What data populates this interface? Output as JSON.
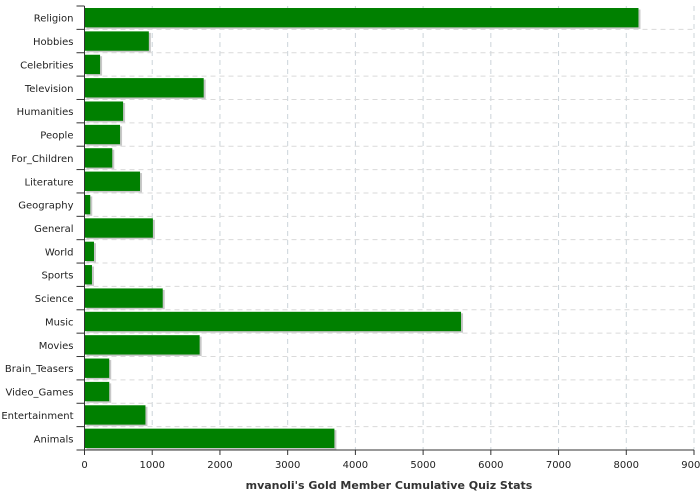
{
  "chart_data": {
    "type": "bar",
    "orientation": "horizontal",
    "title": "",
    "xlabel": "mvanoli's Gold Member Cumulative Quiz Stats",
    "ylabel": "",
    "categories": [
      "Religion",
      "Hobbies",
      "Celebrities",
      "Television",
      "Humanities",
      "People",
      "For_Children",
      "Literature",
      "Geography",
      "General",
      "World",
      "Sports",
      "Science",
      "Music",
      "Movies",
      "Brain_Teasers",
      "Video_Games",
      "Entertainment",
      "Animals"
    ],
    "values": [
      8180,
      950,
      230,
      1760,
      570,
      525,
      410,
      820,
      85,
      1010,
      140,
      110,
      1155,
      5560,
      1700,
      365,
      365,
      900,
      3690
    ],
    "xlim": [
      0,
      9000
    ],
    "xticks": [
      "0",
      "1000",
      "2000",
      "3000",
      "4000",
      "5000",
      "6000",
      "7000",
      "8000",
      "9000"
    ],
    "grid": true,
    "bar_color": "#008000",
    "shadow_color": "#c8c8c8"
  }
}
